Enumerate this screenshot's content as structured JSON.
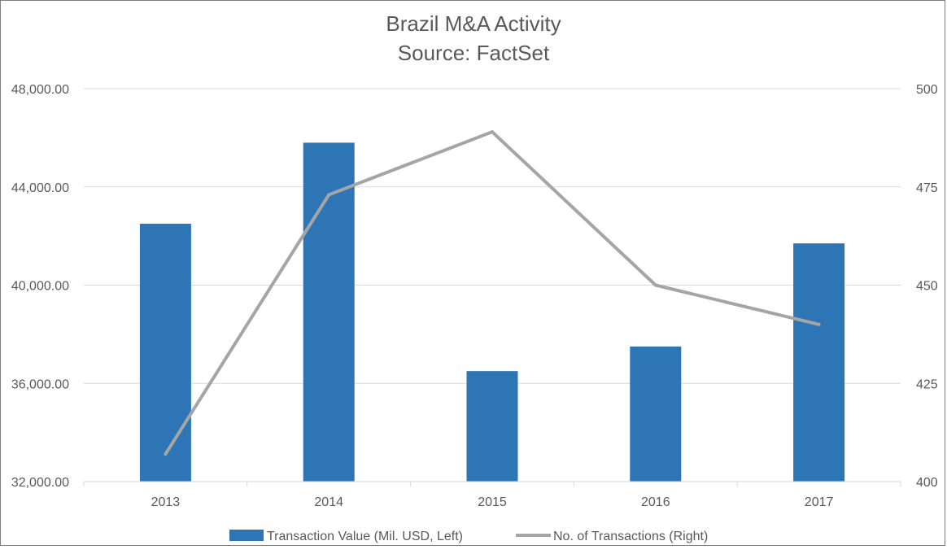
{
  "chart_data": {
    "type": "bar",
    "title": "Brazil M&A Activity",
    "subtitle": "Source: FactSet",
    "categories": [
      "2013",
      "2014",
      "2015",
      "2016",
      "2017"
    ],
    "series": [
      {
        "name": "Transaction Value (Mil. USD, Left)",
        "type": "bar",
        "axis": "left",
        "color": "#2e75b6",
        "values": [
          42500,
          45800,
          36500,
          37500,
          41700
        ]
      },
      {
        "name": "No. of Transactions (Right)",
        "type": "line",
        "axis": "right",
        "color": "#a5a5a5",
        "values": [
          407,
          473,
          489,
          450,
          440
        ]
      }
    ],
    "y_left": {
      "min": 32000,
      "max": 48000,
      "ticks": [
        32000,
        36000,
        40000,
        44000,
        48000
      ],
      "tick_labels": [
        "32,000.00",
        "36,000.00",
        "40,000.00",
        "44,000.00",
        "48,000.00"
      ]
    },
    "y_right": {
      "min": 400,
      "max": 500,
      "ticks": [
        400,
        425,
        450,
        475,
        500
      ],
      "tick_labels": [
        "400",
        "425",
        "450",
        "475",
        "500"
      ]
    },
    "grid": true,
    "legend_position": "bottom",
    "gridline_color": "#d9d9d9",
    "axis_line_color": "#d9d9d9"
  }
}
